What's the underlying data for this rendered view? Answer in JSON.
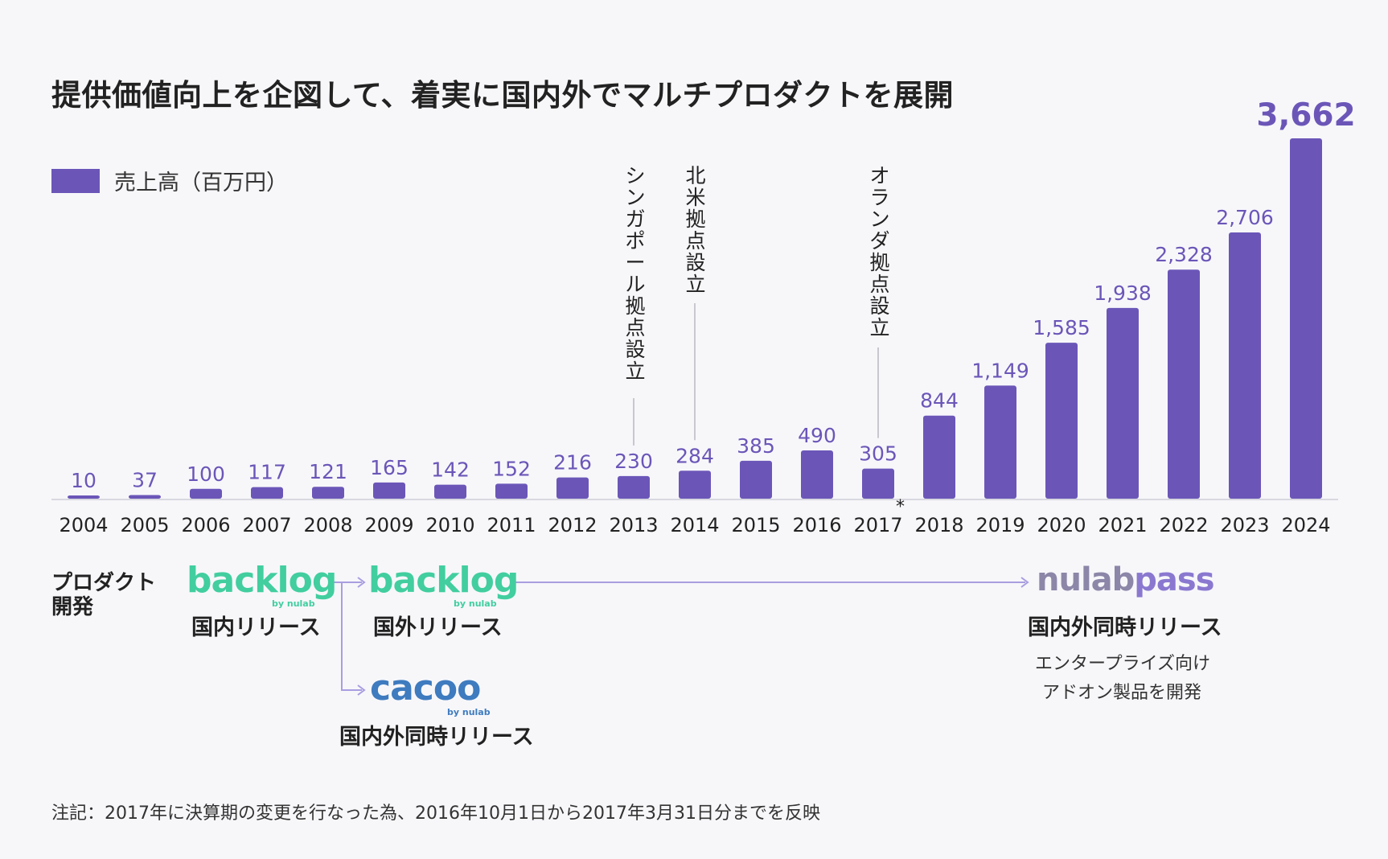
{
  "title": "提供価値向上を企図して、着実に国内外でマルチプロダクトを展開",
  "legend": {
    "label": "売上高（百万円）"
  },
  "chart_data": {
    "type": "bar",
    "title": "提供価値向上を企図して、着実に国内外でマルチプロダクトを展開",
    "categories": [
      "2004",
      "2005",
      "2006",
      "2007",
      "2008",
      "2009",
      "2010",
      "2011",
      "2012",
      "2013",
      "2014",
      "2015",
      "2016",
      "2017",
      "2018",
      "2019",
      "2020",
      "2021",
      "2022",
      "2023",
      "2024"
    ],
    "series": [
      {
        "name": "売上高（百万円）",
        "values": [
          10,
          37,
          100,
          117,
          121,
          165,
          142,
          152,
          216,
          230,
          284,
          385,
          490,
          305,
          844,
          1149,
          1585,
          1938,
          2328,
          2706,
          3662
        ]
      }
    ],
    "value_labels": [
      "10",
      "37",
      "100",
      "117",
      "121",
      "165",
      "142",
      "152",
      "216",
      "230",
      "284",
      "385",
      "490",
      "305",
      "844",
      "1,149",
      "1,585",
      "1,938",
      "2,328",
      "2,706",
      "3,662"
    ],
    "xlabel": "",
    "ylabel": "",
    "color": "#6b56b8",
    "annotations": [
      {
        "year": "2013",
        "text": "シンガポール拠点設立"
      },
      {
        "year": "2014",
        "text": "北米拠点設立"
      },
      {
        "year": "2017",
        "text": "オランダ拠点設立"
      }
    ],
    "asterisk_year": "2017",
    "asterisk": "*"
  },
  "products": {
    "label": "プロダクト開発",
    "backlog_logo": "backlog",
    "backlog_sub": "by nulab",
    "cacoo_logo": "cacoo",
    "cacoo_sub": "by nulab",
    "nulab_logo_main": "nulab",
    "nulab_logo_pass": "pass",
    "backlog_domestic": "国内リリース",
    "backlog_overseas": "国外リリース",
    "cacoo_release": "国内外同時リリース",
    "nulabpass_release": "国内外同時リリース",
    "nulabpass_note_1": "エンタープライズ向け",
    "nulabpass_note_2": "アドオン製品を開発"
  },
  "footnote": "注記：2017年に決算期の変更を行なった為、2016年10月1日から2017年3月31日分までを反映",
  "colors": {
    "bar": "#6b56b8",
    "backlog": "#42ce9f",
    "cacoo": "#3e7bbf",
    "nulab": "#8c86a8",
    "pass": "#8a78d0",
    "arrow": "#a99ee0"
  }
}
